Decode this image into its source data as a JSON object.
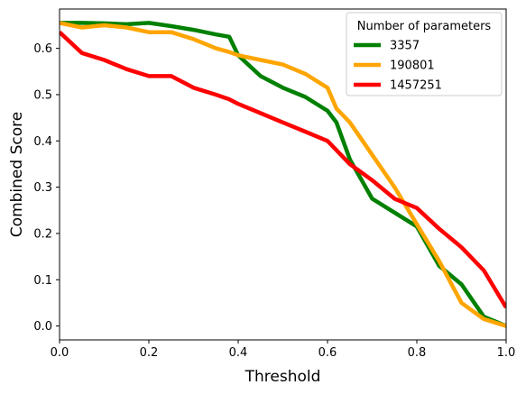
{
  "chart_data": {
    "type": "line",
    "xlabel": "Threshold",
    "ylabel": "Combined Score",
    "xlim": [
      0.0,
      1.0
    ],
    "ylim": [
      -0.03,
      0.685
    ],
    "xticks": [
      "0.0",
      "0.2",
      "0.4",
      "0.6",
      "0.8",
      "1.0"
    ],
    "yticks": [
      "0.0",
      "0.1",
      "0.2",
      "0.3",
      "0.4",
      "0.5",
      "0.6"
    ],
    "grid": false,
    "legend": {
      "title": "Number of parameters",
      "placement": "top-right"
    },
    "x": [
      0.0,
      0.05,
      0.1,
      0.15,
      0.2,
      0.25,
      0.3,
      0.35,
      0.38,
      0.4,
      0.45,
      0.5,
      0.55,
      0.6,
      0.62,
      0.65,
      0.7,
      0.75,
      0.8,
      0.85,
      0.9,
      0.95,
      1.0
    ],
    "series": [
      {
        "name": "3357",
        "color": "#008000",
        "values": [
          0.655,
          0.655,
          0.654,
          0.652,
          0.655,
          0.648,
          0.64,
          0.63,
          0.625,
          0.585,
          0.54,
          0.515,
          0.495,
          0.465,
          0.44,
          0.36,
          0.275,
          0.245,
          0.215,
          0.13,
          0.09,
          0.02,
          0.0
        ]
      },
      {
        "name": "190801",
        "color": "#ffa500",
        "values": [
          0.655,
          0.645,
          0.65,
          0.645,
          0.635,
          0.635,
          0.62,
          0.6,
          0.592,
          0.585,
          0.575,
          0.565,
          0.545,
          0.515,
          0.47,
          0.44,
          0.37,
          0.3,
          0.22,
          0.14,
          0.05,
          0.015,
          0.0
        ]
      },
      {
        "name": "1457251",
        "color": "#ff0000",
        "values": [
          0.635,
          0.59,
          0.575,
          0.555,
          0.54,
          0.54,
          0.515,
          0.5,
          0.49,
          0.48,
          0.46,
          0.44,
          0.42,
          0.4,
          0.38,
          0.35,
          0.315,
          0.275,
          0.255,
          0.21,
          0.17,
          0.12,
          0.04
        ]
      }
    ]
  }
}
